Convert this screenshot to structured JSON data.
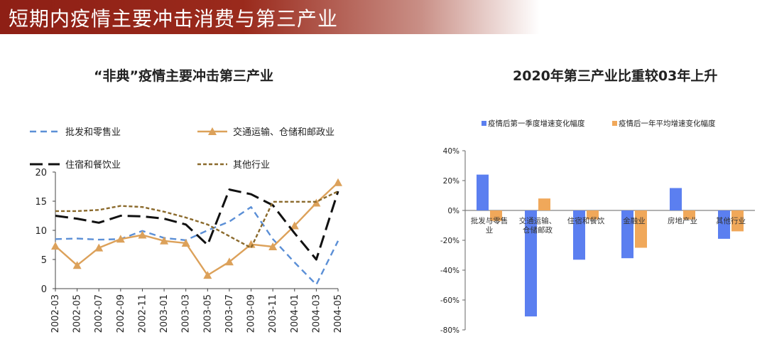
{
  "header": {
    "title": "短期内疫情主要冲击消费与第三产业"
  },
  "chart_data": [
    {
      "type": "line",
      "title": "“非典”疫情主要冲击第三产业",
      "x": [
        "2002-03",
        "2002-05",
        "2002-07",
        "2002-09",
        "2002-11",
        "2003-01",
        "2003-03",
        "2003-05",
        "2003-07",
        "2003-09",
        "2003-11",
        "2004-01",
        "2004-03",
        "2004-05"
      ],
      "ylim": [
        0,
        20
      ],
      "yticks": [
        0,
        5,
        10,
        15,
        20
      ],
      "grid": false,
      "legend_position": "top",
      "series": [
        {
          "name": "批发和零售业",
          "style": "dashed",
          "color": "#5b8fd6",
          "values": [
            8.5,
            8.6,
            8.4,
            8.5,
            9.9,
            8.7,
            8.3,
            10.0,
            11.5,
            14.0,
            8.5,
            4.5,
            0.7,
            8.2
          ]
        },
        {
          "name": "交通运输、仓储和邮政业",
          "style": "solid-triangle",
          "color": "#dca15a",
          "values": [
            7.3,
            4.0,
            7.0,
            8.5,
            9.2,
            8.2,
            7.8,
            2.3,
            4.6,
            7.6,
            7.2,
            10.8,
            14.7,
            18.2
          ]
        },
        {
          "name": "住宿和餐饮业",
          "style": "long-dashed",
          "color": "#111111",
          "values": [
            12.5,
            12.0,
            11.3,
            12.5,
            12.4,
            12.0,
            11.0,
            7.5,
            17.0,
            16.2,
            14.3,
            9.5,
            5.0,
            16.7
          ]
        },
        {
          "name": "其他行业",
          "style": "short-dashed",
          "color": "#8b6a2c",
          "values": [
            13.3,
            13.3,
            13.5,
            14.2,
            14.0,
            13.2,
            12.2,
            11.0,
            9.0,
            7.0,
            14.9,
            14.9,
            14.9,
            16.7
          ]
        }
      ]
    },
    {
      "type": "bar",
      "title": "2020年第三产业比重较03年上升",
      "categories": [
        "批发与零售业",
        "交通运输、仓储邮政",
        "住宿和餐饮",
        "金融业",
        "房地产业",
        "其他行业"
      ],
      "yticks": [
        "40%",
        "20%",
        "0%",
        "-20%",
        "-40%",
        "-60%",
        "-80%"
      ],
      "ylim": [
        -80,
        40
      ],
      "grid": false,
      "legend_position": "top",
      "series": [
        {
          "name": "疫情后第一季度增速变化幅度",
          "color": "#5b7ff0",
          "values": [
            24,
            -71,
            -33,
            -32,
            15,
            -19
          ]
        },
        {
          "name": "疫情后一年平均增速变化幅度",
          "color": "#f0a85a",
          "values": [
            -7,
            8,
            -6,
            -25,
            -6,
            -14
          ]
        }
      ]
    }
  ]
}
